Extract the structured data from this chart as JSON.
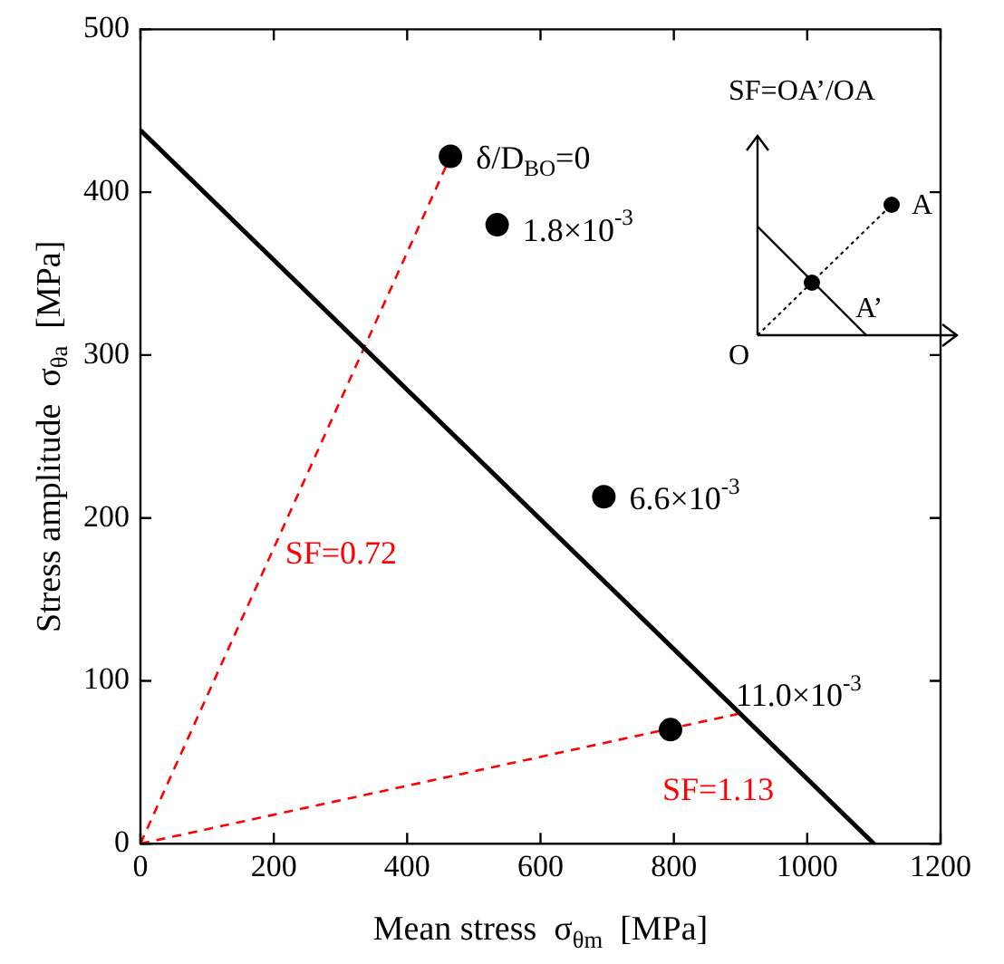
{
  "chart_data": {
    "type": "scatter",
    "xlabel": "Mean stress  σ$_{θm}$  [MPa]",
    "ylabel": "Stress amplitude  σ$_{θa}$  [MPa]",
    "x": [
      465,
      535,
      695,
      795
    ],
    "series": [
      {
        "color": "#000000",
        "marker": "circle",
        "values": [
          422,
          380,
          213,
          70
        ]
      },
      {
        "type": "line",
        "color": "#000000",
        "line_style": "solid",
        "marker": "none",
        "x": [
          0,
          1100
        ],
        "values": [
          438,
          0
        ]
      },
      {
        "type": "line",
        "name": "SF=0.72",
        "color": "#ff0000",
        "line_style": "dashed",
        "marker": "none",
        "x": [
          0,
          465
        ],
        "values": [
          0,
          422
        ]
      },
      {
        "type": "line",
        "name": "SF=1.13",
        "color": "#ff0000",
        "line_style": "dashed",
        "marker": "none",
        "x": [
          0,
          900
        ],
        "values": [
          0,
          80
        ]
      }
    ],
    "annotations": [
      {
        "text": "δ/D$_{BO}$=0",
        "x": 465,
        "y": 422
      },
      {
        "text": "1.8×10$^{-3}$",
        "x": 535,
        "y": 380
      },
      {
        "text": "6.6×10$^{-3}$",
        "x": 695,
        "y": 213
      },
      {
        "text": "11.0×10$^{-3}$",
        "x": 795,
        "y": 70
      },
      "SF=OA’/OA",
      "A",
      "A’",
      "O"
    ],
    "xlim": [
      0,
      1200
    ],
    "xticks": [
      0,
      200,
      400,
      600,
      800,
      1000,
      1200
    ],
    "ylim": [
      0,
      500
    ],
    "yticks": [
      0,
      100,
      200,
      300,
      400,
      500
    ],
    "grid": false,
    "legend": false
  }
}
